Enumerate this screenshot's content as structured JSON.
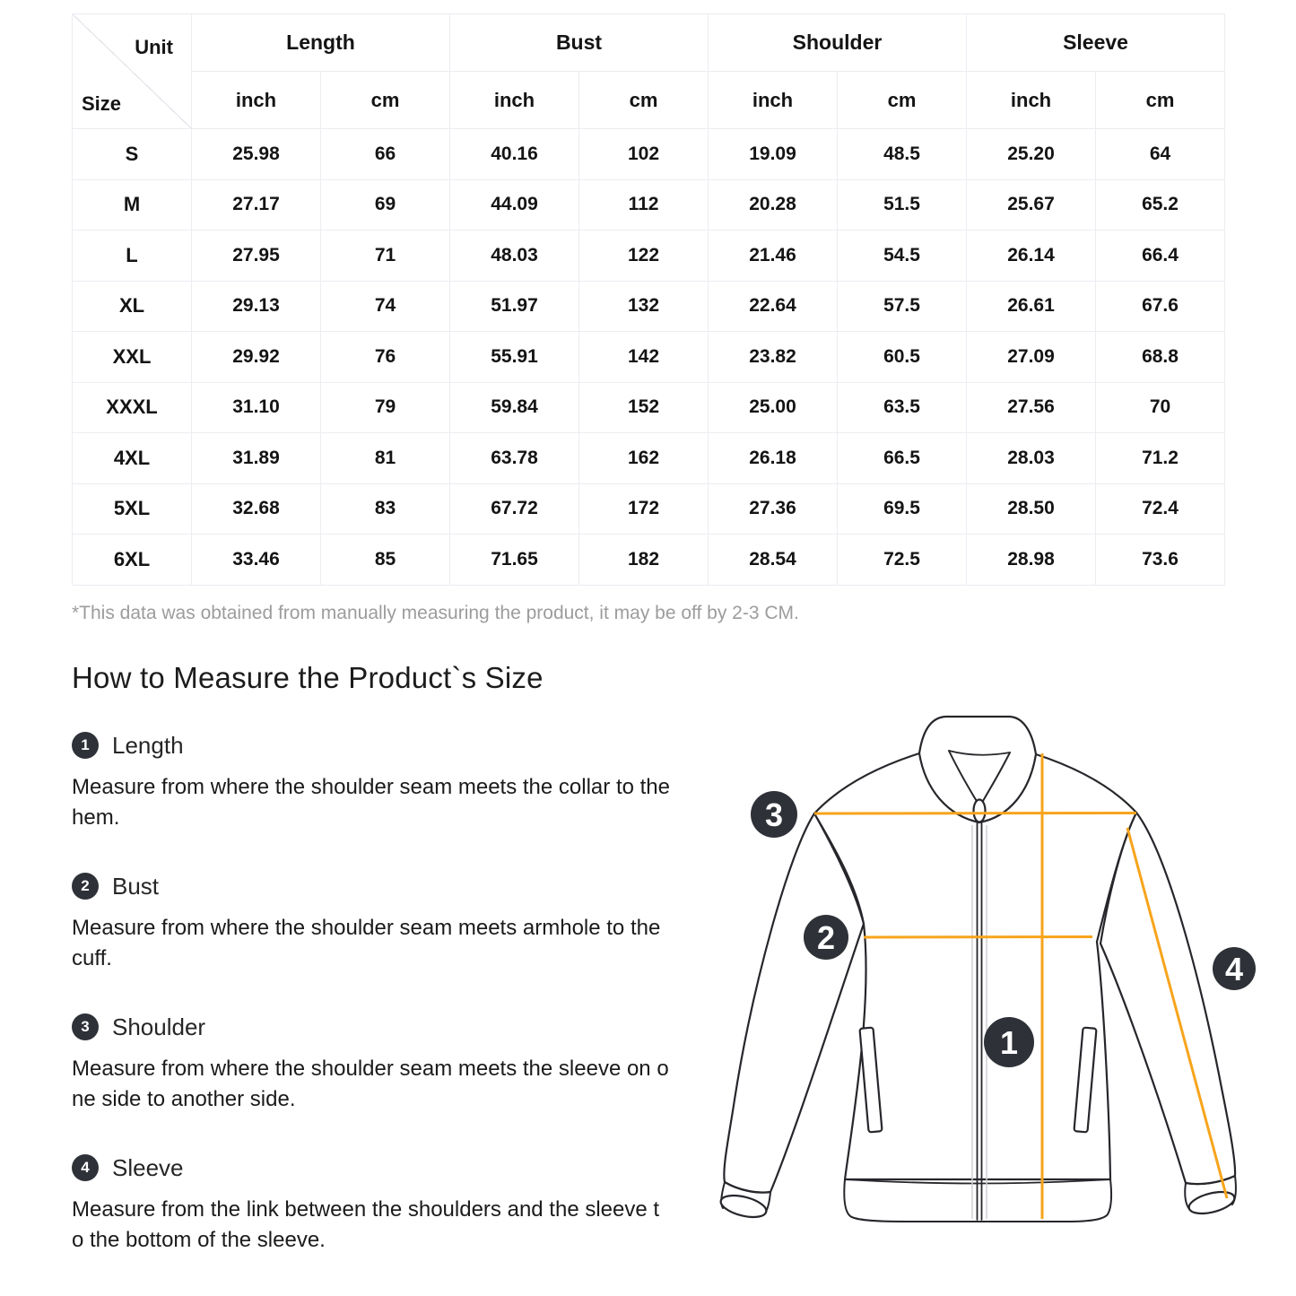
{
  "table": {
    "corner": {
      "unit": "Unit",
      "size": "Size"
    },
    "groups": [
      "Length",
      "Bust",
      "Shoulder",
      "Sleeve"
    ],
    "unit_headers": [
      "inch",
      "cm",
      "inch",
      "cm",
      "inch",
      "cm",
      "inch",
      "cm"
    ],
    "rows": [
      {
        "size": "S",
        "values": [
          "25.98",
          "66",
          "40.16",
          "102",
          "19.09",
          "48.5",
          "25.20",
          "64"
        ]
      },
      {
        "size": "M",
        "values": [
          "27.17",
          "69",
          "44.09",
          "112",
          "20.28",
          "51.5",
          "25.67",
          "65.2"
        ]
      },
      {
        "size": "L",
        "values": [
          "27.95",
          "71",
          "48.03",
          "122",
          "21.46",
          "54.5",
          "26.14",
          "66.4"
        ]
      },
      {
        "size": "XL",
        "values": [
          "29.13",
          "74",
          "51.97",
          "132",
          "22.64",
          "57.5",
          "26.61",
          "67.6"
        ]
      },
      {
        "size": "XXL",
        "values": [
          "29.92",
          "76",
          "55.91",
          "142",
          "23.82",
          "60.5",
          "27.09",
          "68.8"
        ]
      },
      {
        "size": "XXXL",
        "values": [
          "31.10",
          "79",
          "59.84",
          "152",
          "25.00",
          "63.5",
          "27.56",
          "70"
        ]
      },
      {
        "size": "4XL",
        "values": [
          "31.89",
          "81",
          "63.78",
          "162",
          "26.18",
          "66.5",
          "28.03",
          "71.2"
        ]
      },
      {
        "size": "5XL",
        "values": [
          "32.68",
          "83",
          "67.72",
          "172",
          "27.36",
          "69.5",
          "28.50",
          "72.4"
        ]
      },
      {
        "size": "6XL",
        "values": [
          "33.46",
          "85",
          "71.65",
          "182",
          "28.54",
          "72.5",
          "28.98",
          "73.6"
        ]
      }
    ],
    "footnote": "*This data was obtained from manually measuring the product, it may be off by 2-3 CM."
  },
  "section_title": "How to Measure the Product`s Size",
  "measure_items": [
    {
      "number": "1",
      "label": "Length",
      "description": [
        "Measure from where the shoulder seam meets the collar to the",
        "hem."
      ]
    },
    {
      "number": "2",
      "label": "Bust",
      "description": [
        "Measure from where the shoulder seam meets armhole to the",
        "cuff."
      ]
    },
    {
      "number": "3",
      "label": "Shoulder",
      "description": [
        "Measure from where the shoulder seam meets the sleeve on o",
        "ne side to another side."
      ]
    },
    {
      "number": "4",
      "label": "Sleeve",
      "description": [
        "Measure from the link between the shoulders and the sleeve t",
        "o the bottom of the sleeve."
      ]
    }
  ],
  "diagram": {
    "badges": [
      "1",
      "2",
      "3",
      "4"
    ]
  },
  "colors": {
    "accent": "#F7A41C",
    "badge": "#2E3137",
    "outline": "#26262B"
  }
}
